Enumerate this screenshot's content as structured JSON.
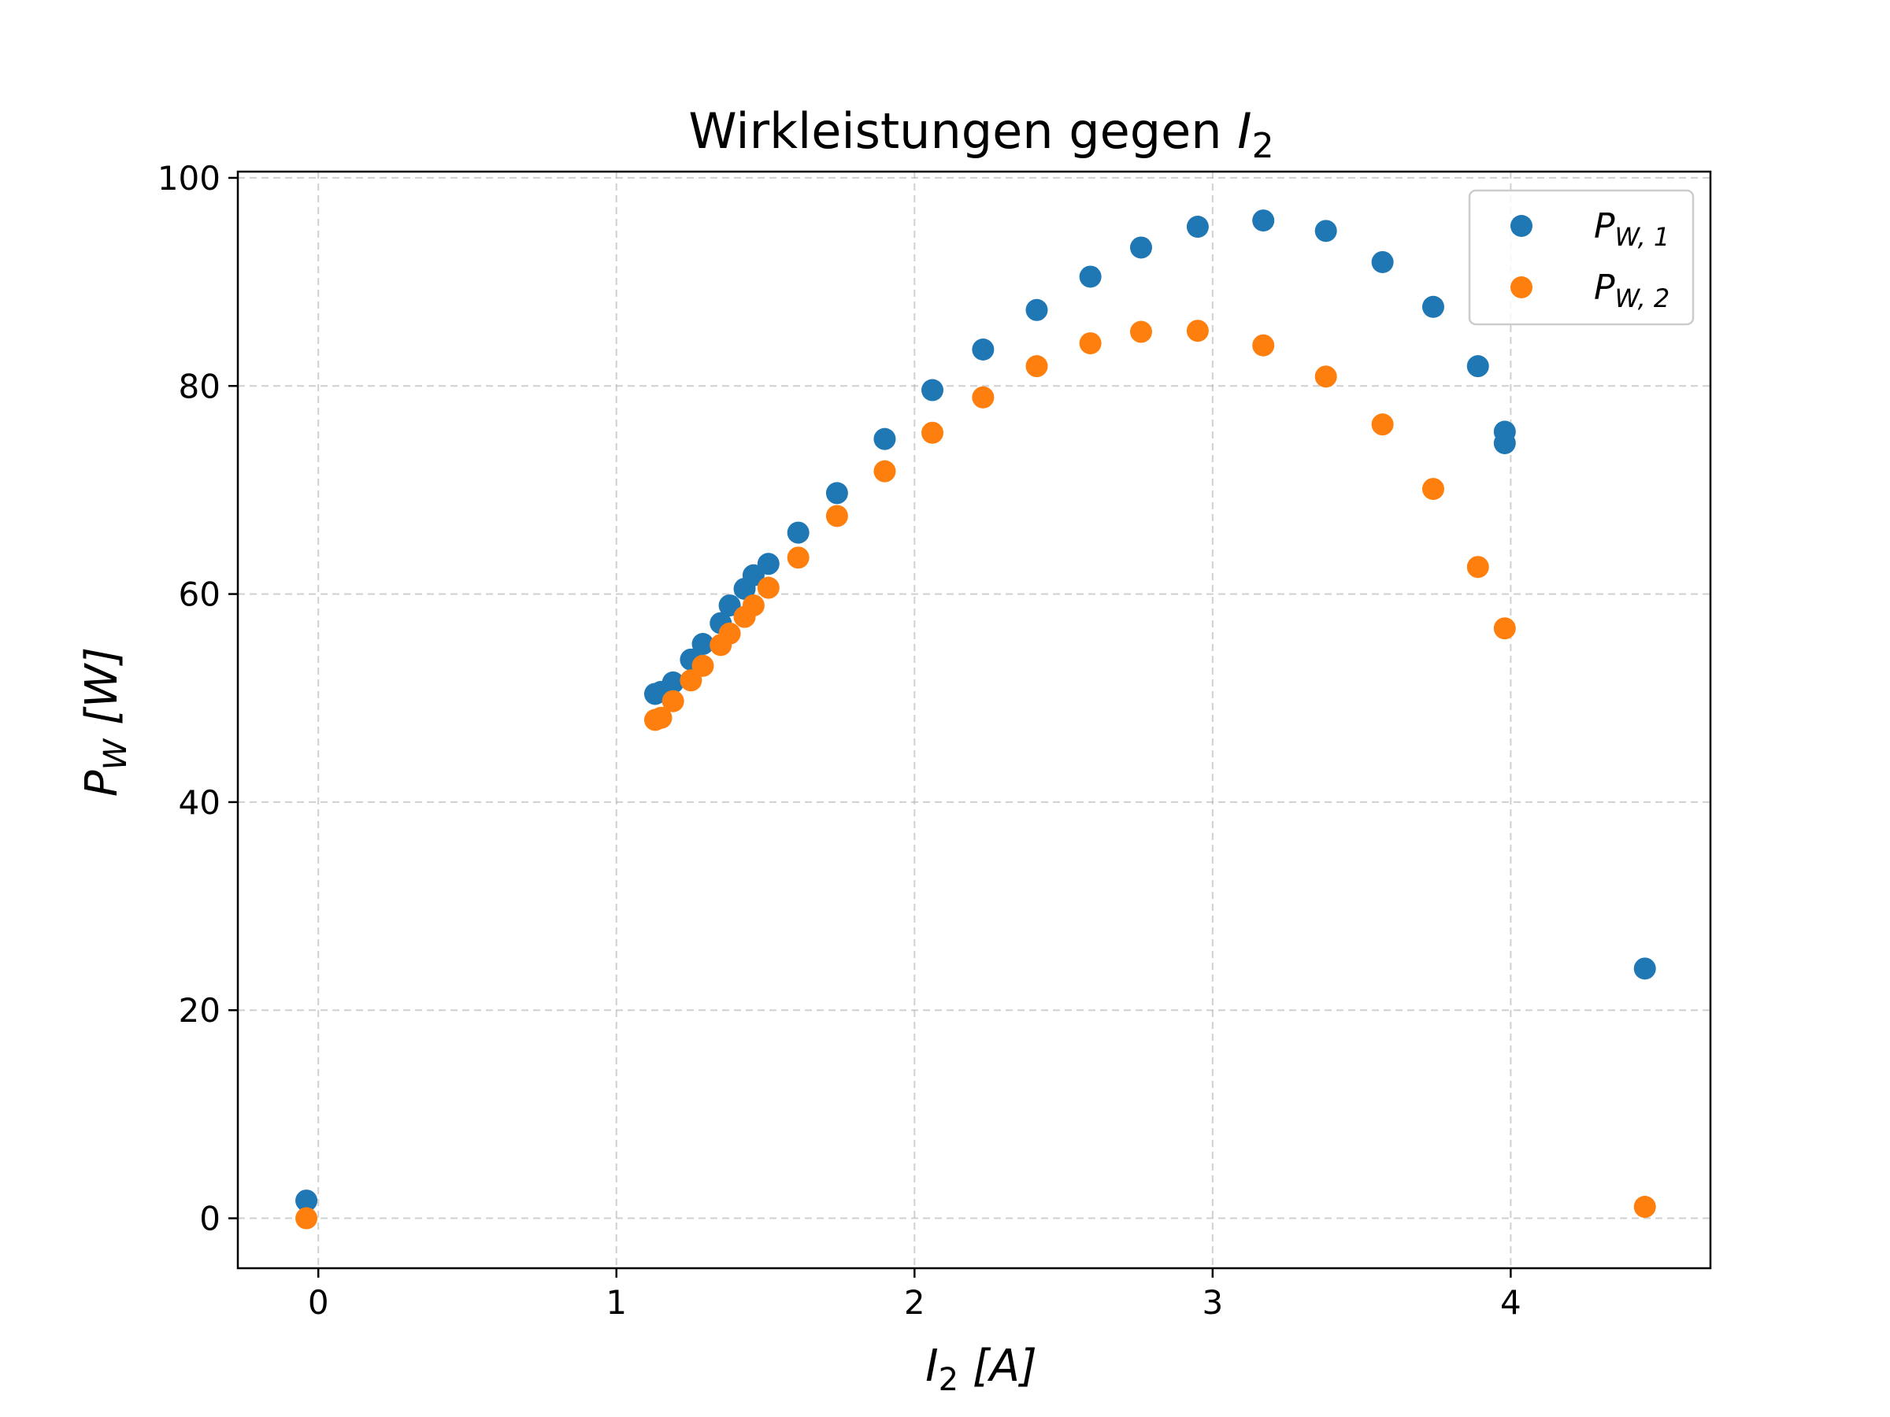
{
  "chart_data": {
    "type": "scatter",
    "title": {
      "prefix": "Wirkleistungen gegen ",
      "var": "I",
      "sub": "2"
    },
    "xlabel": {
      "var": "I",
      "sub": "2",
      "unit": " [A]"
    },
    "ylabel": {
      "var": "P",
      "sub": "W",
      "unit": " [W]"
    },
    "xlim": [
      -0.27,
      4.67
    ],
    "ylim": [
      -4.8,
      100.6
    ],
    "xticks": [
      0,
      1,
      2,
      3,
      4
    ],
    "yticks": [
      0,
      20,
      40,
      60,
      80,
      100
    ],
    "grid": true,
    "legend_position": "top-right",
    "series": [
      {
        "name": {
          "var": "P",
          "sub": "W, 1"
        },
        "color": "#1f77b4",
        "points": [
          [
            -0.04,
            1.7
          ],
          [
            1.13,
            50.4
          ],
          [
            1.15,
            50.6
          ],
          [
            1.19,
            51.5
          ],
          [
            1.25,
            53.7
          ],
          [
            1.29,
            55.2
          ],
          [
            1.35,
            57.2
          ],
          [
            1.38,
            58.9
          ],
          [
            1.43,
            60.5
          ],
          [
            1.46,
            61.8
          ],
          [
            1.51,
            62.9
          ],
          [
            1.61,
            65.9
          ],
          [
            1.74,
            69.7
          ],
          [
            1.9,
            74.9
          ],
          [
            2.06,
            79.6
          ],
          [
            2.23,
            83.5
          ],
          [
            2.41,
            87.3
          ],
          [
            2.59,
            90.5
          ],
          [
            2.76,
            93.3
          ],
          [
            2.95,
            95.3
          ],
          [
            3.17,
            95.9
          ],
          [
            3.38,
            94.9
          ],
          [
            3.57,
            91.9
          ],
          [
            3.74,
            87.6
          ],
          [
            3.89,
            81.9
          ],
          [
            3.98,
            75.6
          ],
          [
            3.98,
            74.5
          ],
          [
            4.45,
            24.0
          ]
        ]
      },
      {
        "name": {
          "var": "P",
          "sub": "W, 2"
        },
        "color": "#ff7f0e",
        "points": [
          [
            -0.04,
            0.0
          ],
          [
            1.13,
            47.9
          ],
          [
            1.15,
            48.1
          ],
          [
            1.19,
            49.7
          ],
          [
            1.25,
            51.7
          ],
          [
            1.29,
            53.1
          ],
          [
            1.35,
            55.1
          ],
          [
            1.38,
            56.2
          ],
          [
            1.43,
            57.8
          ],
          [
            1.46,
            58.9
          ],
          [
            1.51,
            60.6
          ],
          [
            1.61,
            63.5
          ],
          [
            1.74,
            67.5
          ],
          [
            1.9,
            71.8
          ],
          [
            2.06,
            75.5
          ],
          [
            2.23,
            78.9
          ],
          [
            2.41,
            81.9
          ],
          [
            2.59,
            84.1
          ],
          [
            2.76,
            85.2
          ],
          [
            2.95,
            85.3
          ],
          [
            3.17,
            83.9
          ],
          [
            3.38,
            80.9
          ],
          [
            3.57,
            76.3
          ],
          [
            3.74,
            70.1
          ],
          [
            3.89,
            62.6
          ],
          [
            3.98,
            56.7
          ],
          [
            4.45,
            1.1
          ]
        ]
      }
    ]
  }
}
